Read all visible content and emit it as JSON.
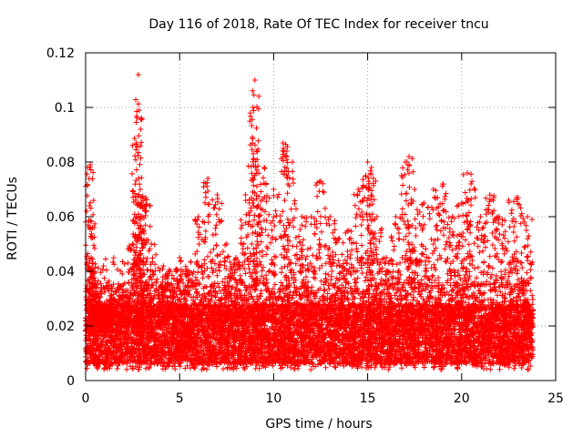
{
  "chart_data": {
    "type": "scatter",
    "title": "Day 116 of 2018, Rate Of TEC Index for receiver tncu",
    "xlabel": "GPS time / hours",
    "ylabel": "ROTI / TECUs",
    "xlim": [
      0,
      25
    ],
    "ylim": [
      0,
      0.12
    ],
    "xticks": [
      0,
      5,
      10,
      15,
      20,
      25
    ],
    "xtick_labels": [
      "0",
      "5",
      "10",
      "15",
      "20",
      "25"
    ],
    "yticks": [
      0,
      0.02,
      0.04,
      0.06,
      0.08,
      0.1,
      0.12
    ],
    "ytick_labels": [
      "0",
      "0.02",
      "0.04",
      "0.06",
      "0.08",
      "0.1",
      "0.12"
    ],
    "grid": true,
    "marker": "plus",
    "series": [
      {
        "name": "ROTI",
        "color": "#ff0000",
        "points_note": "dense red scatter, baseline ~0.005-0.03 TECU from 0 to ~23.8 h",
        "x": [
          0.1,
          0.2,
          0.25,
          0.3,
          0.35,
          0.5,
          0.8,
          1.0,
          1.5,
          2.0,
          2.5,
          2.7,
          2.8,
          2.85,
          2.9,
          3.0,
          3.2,
          3.5,
          4.0,
          4.5,
          5.0,
          5.5,
          6.0,
          6.5,
          7.0,
          7.5,
          8.0,
          8.5,
          8.9,
          9.0,
          9.1,
          9.2,
          9.5,
          10.0,
          10.5,
          10.7,
          11.0,
          11.5,
          12.0,
          12.5,
          13.0,
          13.5,
          14.0,
          14.5,
          14.9,
          15.0,
          15.2,
          15.5,
          16.0,
          16.5,
          17.0,
          17.2,
          17.5,
          18.0,
          18.5,
          19.0,
          19.5,
          20.0,
          20.3,
          20.5,
          21.0,
          21.5,
          22.0,
          22.5,
          23.0,
          23.5,
          23.8
        ],
        "y": [
          0.02,
          0.064,
          0.079,
          0.045,
          0.043,
          0.03,
          0.025,
          0.028,
          0.03,
          0.035,
          0.05,
          0.087,
          0.112,
          0.099,
          0.07,
          0.06,
          0.067,
          0.05,
          0.035,
          0.04,
          0.045,
          0.04,
          0.06,
          0.074,
          0.068,
          0.05,
          0.045,
          0.068,
          0.1,
          0.11,
          0.084,
          0.06,
          0.078,
          0.07,
          0.087,
          0.084,
          0.08,
          0.06,
          0.06,
          0.073,
          0.06,
          0.052,
          0.055,
          0.07,
          0.075,
          0.08,
          0.078,
          0.06,
          0.045,
          0.06,
          0.08,
          0.082,
          0.07,
          0.065,
          0.07,
          0.072,
          0.06,
          0.065,
          0.076,
          0.072,
          0.06,
          0.068,
          0.06,
          0.066,
          0.067,
          0.06,
          0.026
        ]
      }
    ]
  }
}
